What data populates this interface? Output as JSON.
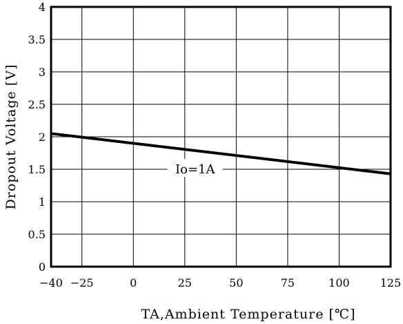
{
  "chart_data": {
    "type": "line",
    "title": "",
    "xlabel": "TA,Ambient Temperature [℃]",
    "ylabel": "Dropout Voltage [V]",
    "xlim": [
      -40,
      125
    ],
    "ylim": [
      0,
      4
    ],
    "x_ticks": [
      -40,
      -25,
      0,
      25,
      50,
      75,
      100,
      125
    ],
    "x_tick_labels": [
      "−40",
      "−25",
      "0",
      "25",
      "50",
      "75",
      "100",
      "125"
    ],
    "y_ticks": [
      0,
      0.5,
      1,
      1.5,
      2,
      2.5,
      3,
      3.5,
      4
    ],
    "y_tick_labels": [
      "0",
      "0.5",
      "1",
      "1.5",
      "2",
      "2.5",
      "3",
      "3.5",
      "4"
    ],
    "grid": true,
    "series": [
      {
        "name": "",
        "x": [
          -40,
          125
        ],
        "y": [
          2.05,
          1.43
        ],
        "color": "#000000"
      }
    ],
    "annotations": [
      {
        "text": "Io=1A",
        "x": 30,
        "y": 1.51
      }
    ]
  }
}
